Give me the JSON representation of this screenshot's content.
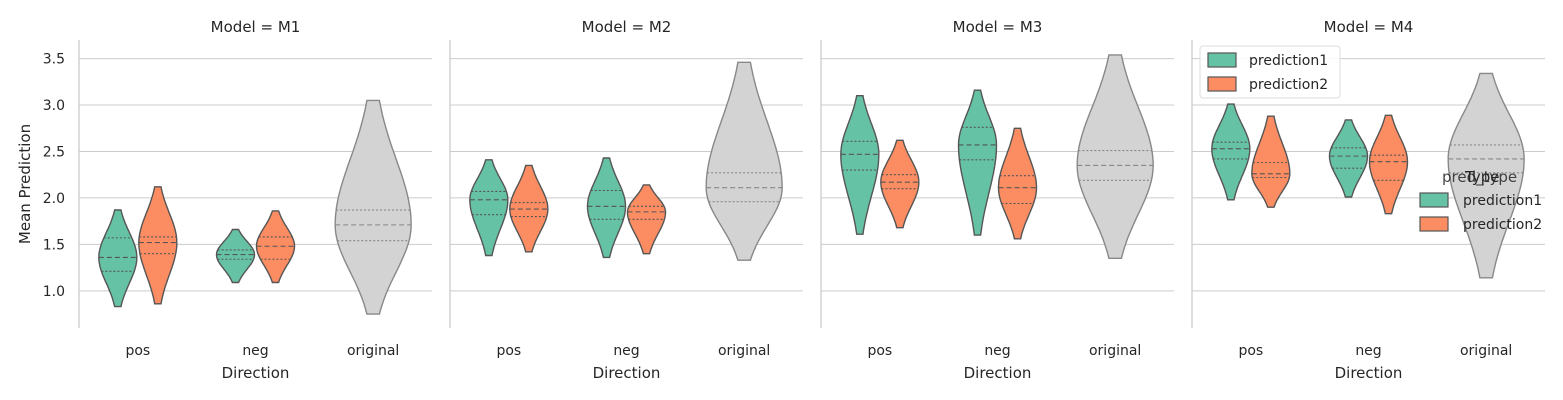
{
  "chart_data": {
    "type": "violin",
    "facet_label_prefix": "Model = ",
    "ylabel": "Mean Prediction",
    "xlabel": "Direction",
    "categories": [
      "pos",
      "neg",
      "original"
    ],
    "ylim": [
      0.6,
      3.7
    ],
    "yticks": [
      "1.0",
      "1.5",
      "2.0",
      "2.5",
      "3.0",
      "3.5"
    ],
    "grid": true,
    "colors": {
      "prediction1": "#66c2a5",
      "prediction2": "#fc8d62",
      "original": "#d3d3d3"
    },
    "legend_inner": {
      "placement": "top-left of Model = M4",
      "items": [
        "prediction1",
        "prediction2"
      ]
    },
    "legend_outer": {
      "title": "Type",
      "title_overlap": "pred_type",
      "placement": "right",
      "items": [
        "prediction1",
        "prediction2"
      ]
    },
    "facets": [
      {
        "model": "M1",
        "violins": [
          {
            "cat": "pos",
            "series": "prediction1",
            "min": 0.83,
            "max": 1.87,
            "q1": 1.21,
            "median": 1.36,
            "q3": 1.57
          },
          {
            "cat": "pos",
            "series": "prediction2",
            "min": 0.86,
            "max": 2.12,
            "q1": 1.4,
            "median": 1.52,
            "q3": 1.58
          },
          {
            "cat": "neg",
            "series": "prediction1",
            "min": 1.09,
            "max": 1.66,
            "q1": 1.34,
            "median": 1.39,
            "q3": 1.44
          },
          {
            "cat": "neg",
            "series": "prediction2",
            "min": 1.09,
            "max": 1.86,
            "q1": 1.34,
            "median": 1.48,
            "q3": 1.58
          },
          {
            "cat": "original",
            "series": "original",
            "min": 0.75,
            "max": 3.05,
            "q1": 1.54,
            "median": 1.71,
            "q3": 1.87
          }
        ]
      },
      {
        "model": "M2",
        "violins": [
          {
            "cat": "pos",
            "series": "prediction1",
            "min": 1.38,
            "max": 2.41,
            "q1": 1.82,
            "median": 1.98,
            "q3": 2.07
          },
          {
            "cat": "pos",
            "series": "prediction2",
            "min": 1.42,
            "max": 2.35,
            "q1": 1.8,
            "median": 1.88,
            "q3": 1.95
          },
          {
            "cat": "neg",
            "series": "prediction1",
            "min": 1.36,
            "max": 2.43,
            "q1": 1.77,
            "median": 1.91,
            "q3": 2.08
          },
          {
            "cat": "neg",
            "series": "prediction2",
            "min": 1.4,
            "max": 2.14,
            "q1": 1.77,
            "median": 1.85,
            "q3": 1.91
          },
          {
            "cat": "original",
            "series": "original",
            "min": 1.33,
            "max": 3.46,
            "q1": 1.96,
            "median": 2.11,
            "q3": 2.27
          }
        ]
      },
      {
        "model": "M3",
        "violins": [
          {
            "cat": "pos",
            "series": "prediction1",
            "min": 1.61,
            "max": 3.1,
            "q1": 2.3,
            "median": 2.47,
            "q3": 2.61
          },
          {
            "cat": "pos",
            "series": "prediction2",
            "min": 1.68,
            "max": 2.62,
            "q1": 2.1,
            "median": 2.17,
            "q3": 2.25
          },
          {
            "cat": "neg",
            "series": "prediction1",
            "min": 1.6,
            "max": 3.16,
            "q1": 2.41,
            "median": 2.57,
            "q3": 2.76
          },
          {
            "cat": "neg",
            "series": "prediction2",
            "min": 1.56,
            "max": 2.75,
            "q1": 1.94,
            "median": 2.11,
            "q3": 2.24
          },
          {
            "cat": "original",
            "series": "original",
            "min": 1.35,
            "max": 3.54,
            "q1": 2.19,
            "median": 2.35,
            "q3": 2.51
          }
        ]
      },
      {
        "model": "M4",
        "violins": [
          {
            "cat": "pos",
            "series": "prediction1",
            "min": 1.98,
            "max": 3.01,
            "q1": 2.42,
            "median": 2.53,
            "q3": 2.6
          },
          {
            "cat": "pos",
            "series": "prediction2",
            "min": 1.9,
            "max": 2.88,
            "q1": 2.22,
            "median": 2.26,
            "q3": 2.38
          },
          {
            "cat": "neg",
            "series": "prediction1",
            "min": 2.01,
            "max": 2.84,
            "q1": 2.32,
            "median": 2.45,
            "q3": 2.54
          },
          {
            "cat": "neg",
            "series": "prediction2",
            "min": 1.83,
            "max": 2.89,
            "q1": 2.19,
            "median": 2.39,
            "q3": 2.46
          },
          {
            "cat": "original",
            "series": "original",
            "min": 1.14,
            "max": 3.34,
            "q1": 2.27,
            "median": 2.42,
            "q3": 2.57
          }
        ]
      }
    ]
  }
}
